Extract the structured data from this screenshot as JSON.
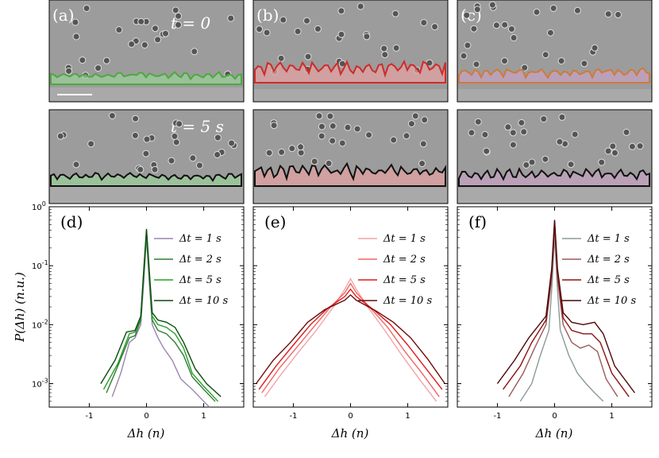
{
  "photos": {
    "top_labels": [
      "(a)",
      "(b)",
      "(c)"
    ],
    "time_labels": [
      "t = 0",
      "t = 5 s"
    ],
    "panel_colors": [
      "#4ea83f",
      "#cf2b2b",
      "#cf7a3a"
    ],
    "overlay_color_later": "#111111",
    "scale_bar_color": "#ffffff"
  },
  "chart_data": [
    {
      "type": "line",
      "panel_label": "(d)",
      "xlabel": "Δh (n)",
      "ylabel": "P(Δh) (n.u.)",
      "xlim": [
        -1.7,
        1.7
      ],
      "ylim": [
        0.0004,
        1
      ],
      "yscale": "log",
      "xticks": [
        -1,
        0,
        1
      ],
      "ytick_labels": [
        "10^0",
        "10^-1",
        "10^-2",
        "10^-3"
      ],
      "legend_placement": "top-right",
      "series": [
        {
          "name": "Δt = 1 s",
          "color": "#9b84b0",
          "x": [
            -0.6,
            -0.45,
            -0.3,
            -0.2,
            -0.1,
            -0.05,
            0,
            0.05,
            0.1,
            0.2,
            0.3,
            0.45,
            0.6,
            0.8,
            1.0,
            1.1
          ],
          "y": [
            0.0006,
            0.0015,
            0.005,
            0.006,
            0.01,
            0.05,
            0.3,
            0.05,
            0.01,
            0.006,
            0.004,
            0.0025,
            0.0012,
            0.0008,
            0.0005,
            0.0004
          ]
        },
        {
          "name": "Δt = 2 s",
          "color": "#2e7d32",
          "x": [
            -0.7,
            -0.5,
            -0.3,
            -0.2,
            -0.1,
            -0.05,
            0,
            0.05,
            0.1,
            0.2,
            0.35,
            0.5,
            0.65,
            0.8,
            1.0,
            1.2
          ],
          "y": [
            0.0007,
            0.002,
            0.006,
            0.0065,
            0.012,
            0.06,
            0.35,
            0.06,
            0.012,
            0.008,
            0.007,
            0.005,
            0.003,
            0.0013,
            0.0008,
            0.0005
          ]
        },
        {
          "name": "Δt = 5 s",
          "color": "#22a022",
          "x": [
            -0.75,
            -0.5,
            -0.3,
            -0.2,
            -0.1,
            -0.05,
            0,
            0.05,
            0.1,
            0.2,
            0.35,
            0.5,
            0.65,
            0.8,
            1.0,
            1.25
          ],
          "y": [
            0.0008,
            0.0022,
            0.007,
            0.0075,
            0.013,
            0.07,
            0.38,
            0.07,
            0.014,
            0.01,
            0.009,
            0.007,
            0.004,
            0.0015,
            0.0009,
            0.0005
          ]
        },
        {
          "name": "Δt = 10 s",
          "color": "#0c4a10",
          "x": [
            -0.8,
            -0.55,
            -0.35,
            -0.2,
            -0.1,
            -0.05,
            0,
            0.05,
            0.1,
            0.2,
            0.35,
            0.5,
            0.65,
            0.85,
            1.05,
            1.3
          ],
          "y": [
            0.001,
            0.0025,
            0.0075,
            0.008,
            0.014,
            0.08,
            0.42,
            0.08,
            0.016,
            0.012,
            0.011,
            0.009,
            0.005,
            0.0018,
            0.001,
            0.0006
          ]
        }
      ]
    },
    {
      "type": "line",
      "panel_label": "(e)",
      "xlabel": "Δh (n)",
      "xlim": [
        -1.7,
        1.7
      ],
      "ylim": [
        0.0004,
        1
      ],
      "yscale": "log",
      "xticks": [
        -1,
        0,
        1
      ],
      "legend_placement": "top-right",
      "series": [
        {
          "name": "Δt = 1 s",
          "color": "#f4a3a8",
          "x": [
            -1.5,
            -1.2,
            -0.9,
            -0.6,
            -0.3,
            -0.1,
            0,
            0.1,
            0.3,
            0.6,
            0.9,
            1.2,
            1.5
          ],
          "y": [
            0.0006,
            0.0015,
            0.0035,
            0.008,
            0.02,
            0.04,
            0.06,
            0.04,
            0.02,
            0.008,
            0.003,
            0.0012,
            0.0005
          ]
        },
        {
          "name": "Δt = 2 s",
          "color": "#ee6666",
          "x": [
            -1.55,
            -1.25,
            -0.95,
            -0.65,
            -0.35,
            -0.1,
            0,
            0.1,
            0.35,
            0.65,
            0.95,
            1.25,
            1.55
          ],
          "y": [
            0.0007,
            0.0018,
            0.004,
            0.009,
            0.02,
            0.035,
            0.05,
            0.035,
            0.019,
            0.009,
            0.0035,
            0.0015,
            0.0006
          ]
        },
        {
          "name": "Δt = 5 s",
          "color": "#dd1a1a",
          "x": [
            -1.6,
            -1.3,
            -1.0,
            -0.7,
            -0.4,
            -0.1,
            0,
            0.1,
            0.4,
            0.7,
            1.0,
            1.3,
            1.6
          ],
          "y": [
            0.0008,
            0.002,
            0.0045,
            0.01,
            0.019,
            0.03,
            0.04,
            0.03,
            0.018,
            0.01,
            0.0045,
            0.0019,
            0.0008
          ]
        },
        {
          "name": "Δt = 10 s",
          "color": "#6e0c0c",
          "x": [
            -1.65,
            -1.35,
            -1.05,
            -0.75,
            -0.45,
            -0.1,
            0,
            0.1,
            0.45,
            0.75,
            1.05,
            1.35,
            1.65
          ],
          "y": [
            0.001,
            0.0025,
            0.005,
            0.011,
            0.018,
            0.026,
            0.032,
            0.026,
            0.017,
            0.011,
            0.006,
            0.0026,
            0.001
          ]
        }
      ]
    },
    {
      "type": "line",
      "panel_label": "(f)",
      "xlabel": "Δh (n)",
      "xlim": [
        -1.7,
        1.7
      ],
      "ylim": [
        0.0004,
        1
      ],
      "yscale": "log",
      "xticks": [
        -1,
        0,
        1
      ],
      "legend_placement": "top-right",
      "series": [
        {
          "name": "Δt = 1 s",
          "color": "#8a9a9a",
          "x": [
            -0.6,
            -0.4,
            -0.25,
            -0.1,
            -0.05,
            0,
            0.05,
            0.1,
            0.25,
            0.4,
            0.55,
            0.7,
            0.85
          ],
          "y": [
            0.0005,
            0.001,
            0.003,
            0.008,
            0.04,
            0.3,
            0.04,
            0.008,
            0.003,
            0.0015,
            0.001,
            0.0007,
            0.0005
          ]
        },
        {
          "name": "Δt = 2 s",
          "color": "#9a5a5a",
          "x": [
            -0.8,
            -0.55,
            -0.35,
            -0.15,
            -0.05,
            0,
            0.05,
            0.15,
            0.3,
            0.45,
            0.6,
            0.75,
            0.9,
            1.1
          ],
          "y": [
            0.0006,
            0.0015,
            0.004,
            0.01,
            0.06,
            0.45,
            0.06,
            0.01,
            0.005,
            0.004,
            0.0045,
            0.0035,
            0.0012,
            0.0006
          ]
        },
        {
          "name": "Δt = 5 s",
          "color": "#8e1010",
          "x": [
            -0.9,
            -0.6,
            -0.4,
            -0.15,
            -0.05,
            0,
            0.05,
            0.15,
            0.3,
            0.5,
            0.65,
            0.8,
            1.0,
            1.3
          ],
          "y": [
            0.0008,
            0.002,
            0.005,
            0.012,
            0.08,
            0.55,
            0.08,
            0.013,
            0.008,
            0.007,
            0.007,
            0.005,
            0.0015,
            0.0006
          ]
        },
        {
          "name": "Δt = 10 s",
          "color": "#4a0606",
          "x": [
            -1.0,
            -0.7,
            -0.45,
            -0.15,
            -0.05,
            0,
            0.05,
            0.15,
            0.3,
            0.5,
            0.7,
            0.85,
            1.05,
            1.4
          ],
          "y": [
            0.001,
            0.0025,
            0.006,
            0.014,
            0.09,
            0.6,
            0.09,
            0.016,
            0.011,
            0.01,
            0.011,
            0.007,
            0.002,
            0.0007
          ]
        }
      ]
    }
  ]
}
